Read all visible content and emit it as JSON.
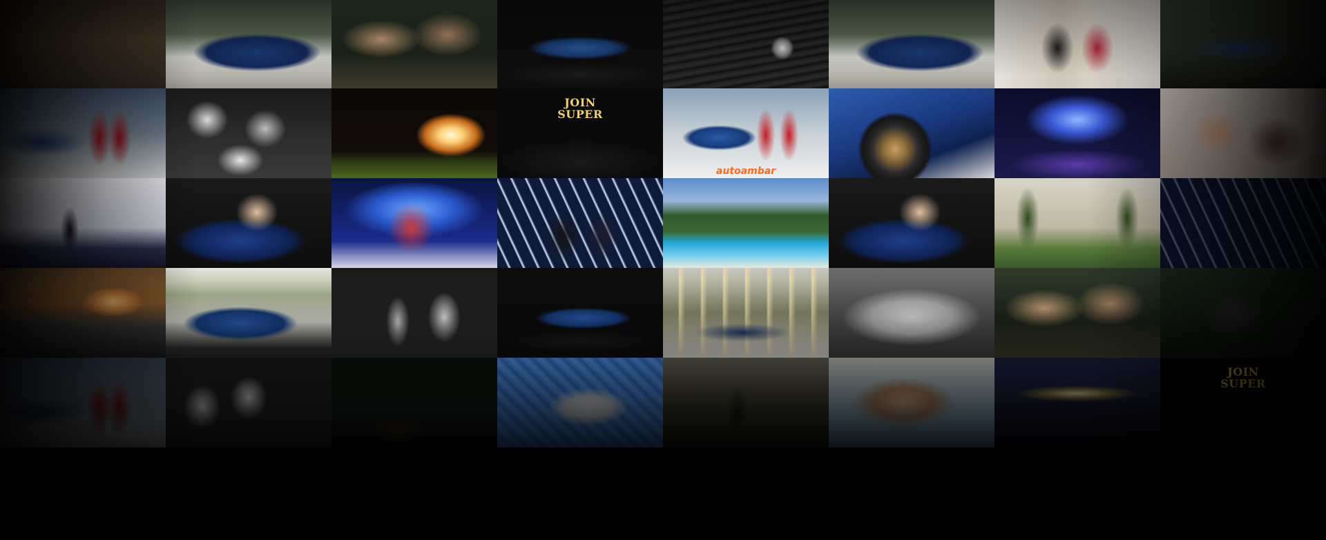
{
  "gallery": {
    "tiles": [
      {
        "scene": "event-crowd-dim",
        "text": ""
      },
      {
        "scene": "blue-car-stage",
        "text": ""
      },
      {
        "scene": "party-table-group",
        "text": ""
      },
      {
        "scene": "car-turntable",
        "text": ""
      },
      {
        "scene": "car-grille-logo",
        "text": ""
      },
      {
        "scene": "blue-car-stage",
        "text": ""
      },
      {
        "scene": "two-men-poster",
        "text": ""
      },
      {
        "scene": "car-turntable-dark",
        "text": ""
      },
      {
        "scene": "models-red-dress-dim",
        "text": ""
      },
      {
        "scene": "bw-party-dance",
        "text": ""
      },
      {
        "scene": "fire-performer",
        "text": ""
      },
      {
        "scene": "group-join-super",
        "text": "JOIN\nSUPER"
      },
      {
        "scene": "models-red-dress-car",
        "text": "",
        "brand": "autoambar"
      },
      {
        "scene": "car-wheel-closeup",
        "text": ""
      },
      {
        "scene": "stage-dancers-lights",
        "text": ""
      },
      {
        "scene": "man-selfie",
        "text": ""
      },
      {
        "scene": "silhouette-stage",
        "text": ""
      },
      {
        "scene": "woman-in-convertible",
        "text": ""
      },
      {
        "scene": "acrobat-drummers",
        "text": ""
      },
      {
        "scene": "couple-light-wall",
        "text": ""
      },
      {
        "scene": "pool-resort",
        "text": ""
      },
      {
        "scene": "woman-in-convertible",
        "text": ""
      },
      {
        "scene": "palm-alley",
        "text": ""
      },
      {
        "scene": "couple-light-wall-dim",
        "text": ""
      },
      {
        "scene": "sunset-sea",
        "text": ""
      },
      {
        "scene": "blue-car-palms",
        "text": ""
      },
      {
        "scene": "bw-singer",
        "text": ""
      },
      {
        "scene": "car-turntable-palms",
        "text": ""
      },
      {
        "scene": "car-flags-palms",
        "text": ""
      },
      {
        "scene": "bw-white-party",
        "text": ""
      },
      {
        "scene": "party-table-group",
        "text": ""
      },
      {
        "scene": "dark-party-group",
        "text": ""
      },
      {
        "scene": "models-red-dress-dim",
        "text": ""
      },
      {
        "scene": "bw-men-laughing",
        "text": ""
      },
      {
        "scene": "night-lounge",
        "text": ""
      },
      {
        "scene": "pool-float",
        "text": ""
      },
      {
        "scene": "outdoor-toast",
        "text": ""
      },
      {
        "scene": "pool-men-swimwear",
        "text": ""
      },
      {
        "scene": "night-festival",
        "text": ""
      },
      {
        "scene": "group-join-super-dim",
        "text": "JOIN\nSUPER"
      },
      {
        "scene": "dark-1",
        "text": ""
      },
      {
        "scene": "dark-2",
        "text": ""
      },
      {
        "scene": "dark-3",
        "text": ""
      },
      {
        "scene": "dark-4",
        "text": ""
      },
      {
        "scene": "dark-5",
        "text": ""
      },
      {
        "scene": "dark-6",
        "text": ""
      },
      {
        "scene": "dark-7",
        "text": ""
      },
      {
        "scene": "dark-8",
        "text": ""
      }
    ]
  }
}
